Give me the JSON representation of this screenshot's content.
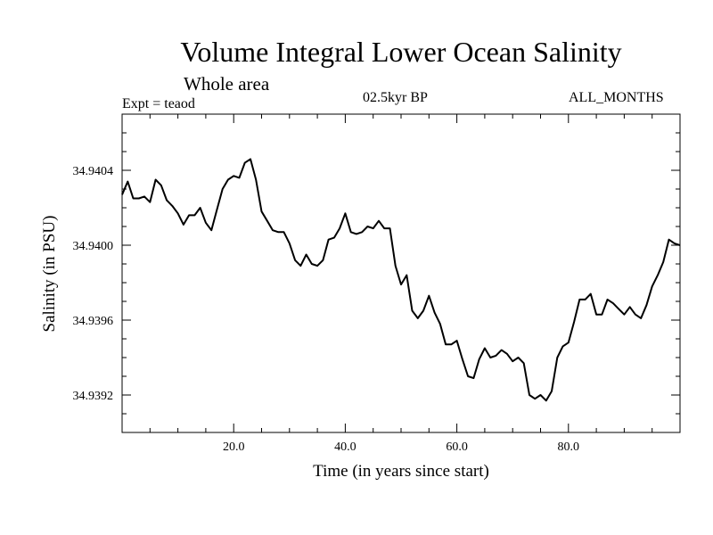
{
  "chart_data": {
    "type": "line",
    "title": "Volume Integral Lower Ocean Salinity",
    "subtitle": "Whole area",
    "experiment": "Expt = teaod",
    "period": "02.5kyr BP",
    "months": "ALL_MONTHS",
    "xlabel": "Time (in years since start)",
    "ylabel": "Salinity (in PSU)",
    "xlim": [
      0,
      100
    ],
    "ylim": [
      34.939,
      34.9407
    ],
    "xticks": [
      20,
      40,
      60,
      80
    ],
    "xtick_labels": [
      "20.0",
      "40.0",
      "60.0",
      "80.0"
    ],
    "yticks": [
      34.9392,
      34.9396,
      34.94,
      34.9404
    ],
    "ytick_labels": [
      "34.9392",
      "34.9396",
      "34.9400",
      "34.9404"
    ],
    "series": [
      {
        "name": "Salinity",
        "x": [
          0,
          1,
          2,
          3,
          4,
          5,
          6,
          7,
          8,
          9,
          10,
          11,
          12,
          13,
          14,
          15,
          16,
          17,
          18,
          19,
          20,
          21,
          22,
          23,
          24,
          25,
          26,
          27,
          28,
          29,
          30,
          31,
          32,
          33,
          34,
          35,
          36,
          37,
          38,
          39,
          40,
          41,
          42,
          43,
          44,
          45,
          46,
          47,
          48,
          49,
          50,
          51,
          52,
          53,
          54,
          55,
          56,
          57,
          58,
          59,
          60,
          61,
          62,
          63,
          64,
          65,
          66,
          67,
          68,
          69,
          70,
          71,
          72,
          73,
          74,
          75,
          76,
          77,
          78,
          79,
          80,
          81,
          82,
          83,
          84,
          85,
          86,
          87,
          88,
          89,
          90,
          91,
          92,
          93,
          94,
          95,
          96,
          97,
          98,
          99,
          100
        ],
        "y": [
          34.94027,
          34.94034,
          34.94025,
          34.94025,
          34.94026,
          34.94023,
          34.94035,
          34.94032,
          34.94024,
          34.94021,
          34.94017,
          34.94011,
          34.94016,
          34.94016,
          34.9402,
          34.94012,
          34.94008,
          34.94019,
          34.9403,
          34.94035,
          34.94037,
          34.94036,
          34.94044,
          34.94046,
          34.94035,
          34.94018,
          34.94013,
          34.94008,
          34.94007,
          34.94007,
          34.94001,
          34.93992,
          34.93989,
          34.93995,
          34.9399,
          34.93989,
          34.93992,
          34.94003,
          34.94004,
          34.94009,
          34.94017,
          34.94007,
          34.94006,
          34.94007,
          34.9401,
          34.94009,
          34.94013,
          34.94009,
          34.94009,
          34.93989,
          34.93979,
          34.93984,
          34.93965,
          34.93961,
          34.93965,
          34.93973,
          34.93964,
          34.93958,
          34.93947,
          34.93947,
          34.93949,
          34.93939,
          34.9393,
          34.93929,
          34.93939,
          34.93945,
          34.9394,
          34.93941,
          34.93944,
          34.93942,
          34.93938,
          34.9394,
          34.93937,
          34.9392,
          34.93918,
          34.9392,
          34.93917,
          34.93922,
          34.9394,
          34.93946,
          34.93948,
          34.93959,
          34.93971,
          34.93971,
          34.93974,
          34.93963,
          34.93963,
          34.93971,
          34.93969,
          34.93966,
          34.93963,
          34.93967,
          34.93963,
          34.93961,
          34.93968,
          34.93978,
          34.93984,
          34.93991,
          34.94003,
          34.94001,
          34.94
        ]
      }
    ]
  }
}
